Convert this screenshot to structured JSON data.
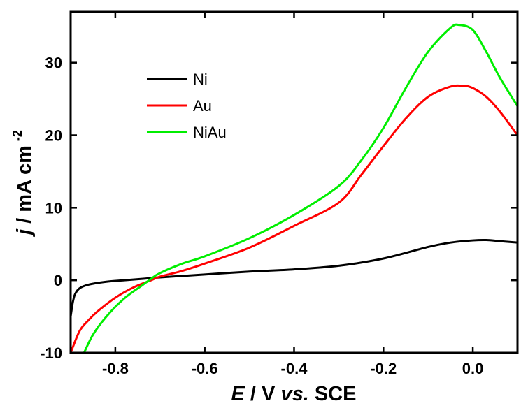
{
  "chart_data": {
    "type": "line",
    "title": "",
    "xlabel_parts": {
      "var": "E",
      "rest1": " / V ",
      "vs": "vs.",
      "rest2": " SCE"
    },
    "ylabel_parts": {
      "var": "j",
      "rest": " / mA cm",
      "sup": "-2"
    },
    "xlim": [
      -0.9,
      0.1
    ],
    "ylim": [
      -10,
      37
    ],
    "xticks": [
      -0.8,
      -0.6,
      -0.4,
      -0.2,
      0.0
    ],
    "xtick_labels": [
      "-0.8",
      "-0.6",
      "-0.4",
      "-0.2",
      "0.0"
    ],
    "yticks": [
      -10,
      0,
      10,
      20,
      30
    ],
    "ytick_labels": [
      "-10",
      "0",
      "10",
      "20",
      "30"
    ],
    "grid": false,
    "legend_position": "top-left",
    "series": [
      {
        "name": "Ni",
        "color": "#000000",
        "x": [
          -0.9,
          -0.895,
          -0.89,
          -0.88,
          -0.86,
          -0.82,
          -0.78,
          -0.74,
          -0.7,
          -0.6,
          -0.5,
          -0.4,
          -0.3,
          -0.2,
          -0.1,
          -0.05,
          0.0,
          0.03,
          0.06,
          0.1
        ],
        "y": [
          -5.0,
          -3.0,
          -1.9,
          -1.1,
          -0.6,
          -0.2,
          0.0,
          0.2,
          0.4,
          0.8,
          1.2,
          1.5,
          2.0,
          3.0,
          4.6,
          5.2,
          5.5,
          5.55,
          5.4,
          5.2
        ]
      },
      {
        "name": "Au",
        "color": "#ff0000",
        "x": [
          -0.9,
          -0.88,
          -0.86,
          -0.84,
          -0.8,
          -0.76,
          -0.72,
          -0.7,
          -0.65,
          -0.6,
          -0.5,
          -0.4,
          -0.3,
          -0.25,
          -0.2,
          -0.15,
          -0.1,
          -0.05,
          -0.02,
          0.0,
          0.03,
          0.06,
          0.1
        ],
        "y": [
          -10.0,
          -7.0,
          -5.5,
          -4.3,
          -2.4,
          -1.0,
          0.0,
          0.5,
          1.3,
          2.3,
          4.5,
          7.5,
          10.7,
          14.5,
          18.5,
          22.3,
          25.3,
          26.7,
          26.8,
          26.5,
          25.3,
          23.3,
          20.0
        ]
      },
      {
        "name": "NiAu",
        "color": "#00ee00",
        "x": [
          -0.87,
          -0.85,
          -0.82,
          -0.78,
          -0.74,
          -0.72,
          -0.7,
          -0.65,
          -0.6,
          -0.5,
          -0.4,
          -0.3,
          -0.25,
          -0.2,
          -0.15,
          -0.1,
          -0.05,
          -0.03,
          0.0,
          0.03,
          0.06,
          0.1
        ],
        "y": [
          -10.0,
          -7.5,
          -5.0,
          -2.5,
          -0.7,
          0.2,
          1.0,
          2.3,
          3.3,
          5.8,
          9.0,
          13.0,
          16.5,
          21.0,
          26.5,
          31.5,
          34.8,
          35.2,
          34.5,
          31.5,
          28.0,
          24.0
        ]
      }
    ]
  }
}
